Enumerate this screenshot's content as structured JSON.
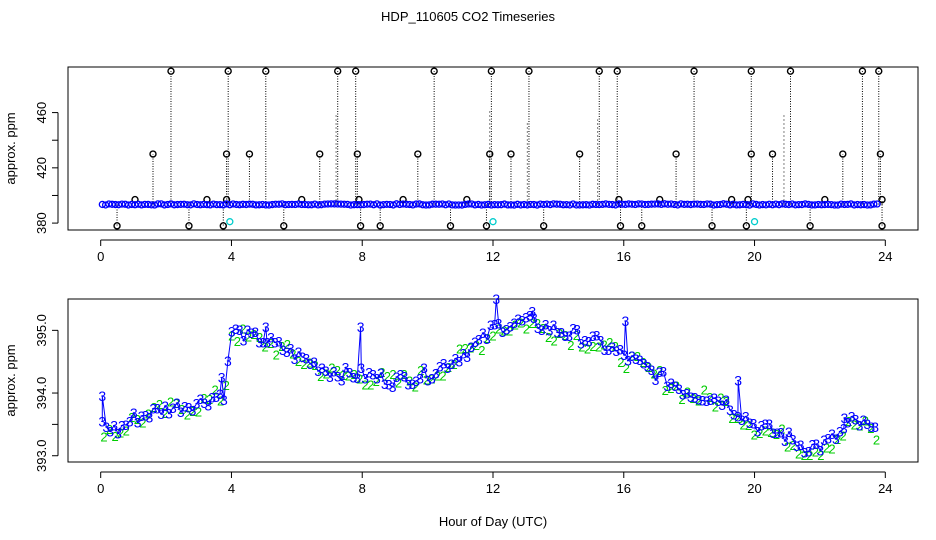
{
  "title": "HDP_110605  CO2 Timeseries",
  "xlabel": "Hour of Day (UTC)",
  "colors": {
    "axis": "#000000",
    "base": "#0000ff",
    "alt": "#00cc00",
    "cyan": "#00cccc"
  },
  "chart_data": [
    {
      "type": "scatter",
      "panel": "top",
      "ylabel": "approx. ppm",
      "xlim": [
        -1,
        25
      ],
      "ylim": [
        375,
        493
      ],
      "xticks": [
        0,
        4,
        8,
        12,
        16,
        20,
        24
      ],
      "yticks": [
        380,
        400,
        420,
        440,
        460
      ],
      "yticklabels": [
        "380",
        "",
        "420",
        "",
        "460"
      ],
      "baseline_ppm": 393.5,
      "spikes_high": [
        2.15,
        3.9,
        5.05,
        7.25,
        7.8,
        10.2,
        11.95,
        13.1,
        15.25,
        15.8,
        18.15,
        19.9,
        21.1,
        23.3,
        23.8
      ],
      "spikes_mid_430": [
        1.6,
        3.85,
        4.55,
        6.7,
        7.85,
        9.7,
        11.9,
        12.55,
        14.65,
        17.6,
        19.9,
        20.55,
        22.7,
        23.85
      ],
      "spikes_397": [
        1.05,
        3.25,
        3.85,
        6.15,
        7.9,
        9.25,
        11.2,
        15.85,
        17.1,
        19.3,
        19.8,
        22.15,
        23.9
      ],
      "dips_378": [
        0.5,
        2.7,
        3.75,
        5.6,
        7.95,
        8.55,
        10.7,
        11.8,
        13.55,
        15.9,
        16.55,
        18.7,
        19.75,
        21.7,
        23.9
      ],
      "cyan_points": [
        [
          3.95,
          381
        ],
        [
          12.0,
          381
        ],
        [
          20.0,
          381
        ]
      ]
    },
    {
      "type": "scatter",
      "panel": "bottom",
      "ylabel": "approx. ppm",
      "xlim": [
        -1,
        25
      ],
      "ylim": [
        392.9,
        395.5
      ],
      "xticks": [
        0,
        4,
        8,
        12,
        16,
        20,
        24
      ],
      "yticks": [
        393.0,
        394.0,
        395.0
      ],
      "yticklabels": [
        "393.0",
        "394.0",
        "395.0"
      ],
      "extra_ytick": 393.5,
      "trend": {
        "x": [
          0,
          0.5,
          1,
          2,
          3,
          3.8,
          4,
          4.5,
          5,
          6,
          7,
          7.5,
          8,
          9,
          10,
          11,
          11.8,
          12,
          12.5,
          13,
          14,
          15,
          16,
          17,
          17.5,
          18,
          19,
          20,
          21,
          21.5,
          22,
          22.5,
          23,
          23.5,
          23.8
        ],
        "y": [
          393.5,
          393.4,
          393.6,
          393.75,
          393.85,
          394.0,
          395.0,
          394.9,
          394.85,
          394.6,
          394.35,
          394.3,
          394.3,
          394.2,
          394.3,
          394.6,
          394.9,
          395.05,
          395.1,
          395.15,
          395.0,
          394.85,
          394.6,
          394.3,
          394.15,
          394.0,
          393.9,
          393.5,
          393.3,
          393.15,
          393.15,
          393.3,
          393.55,
          393.45,
          393.3
        ]
      },
      "peaks": [
        [
          0.05,
          393.95
        ],
        [
          3.7,
          394.25
        ],
        [
          5.05,
          395.05
        ],
        [
          7.95,
          395.05
        ],
        [
          12.1,
          395.5
        ],
        [
          13.2,
          395.3
        ],
        [
          16.05,
          395.15
        ],
        [
          19.5,
          394.2
        ],
        [
          22.75,
          393.6
        ]
      ]
    }
  ]
}
